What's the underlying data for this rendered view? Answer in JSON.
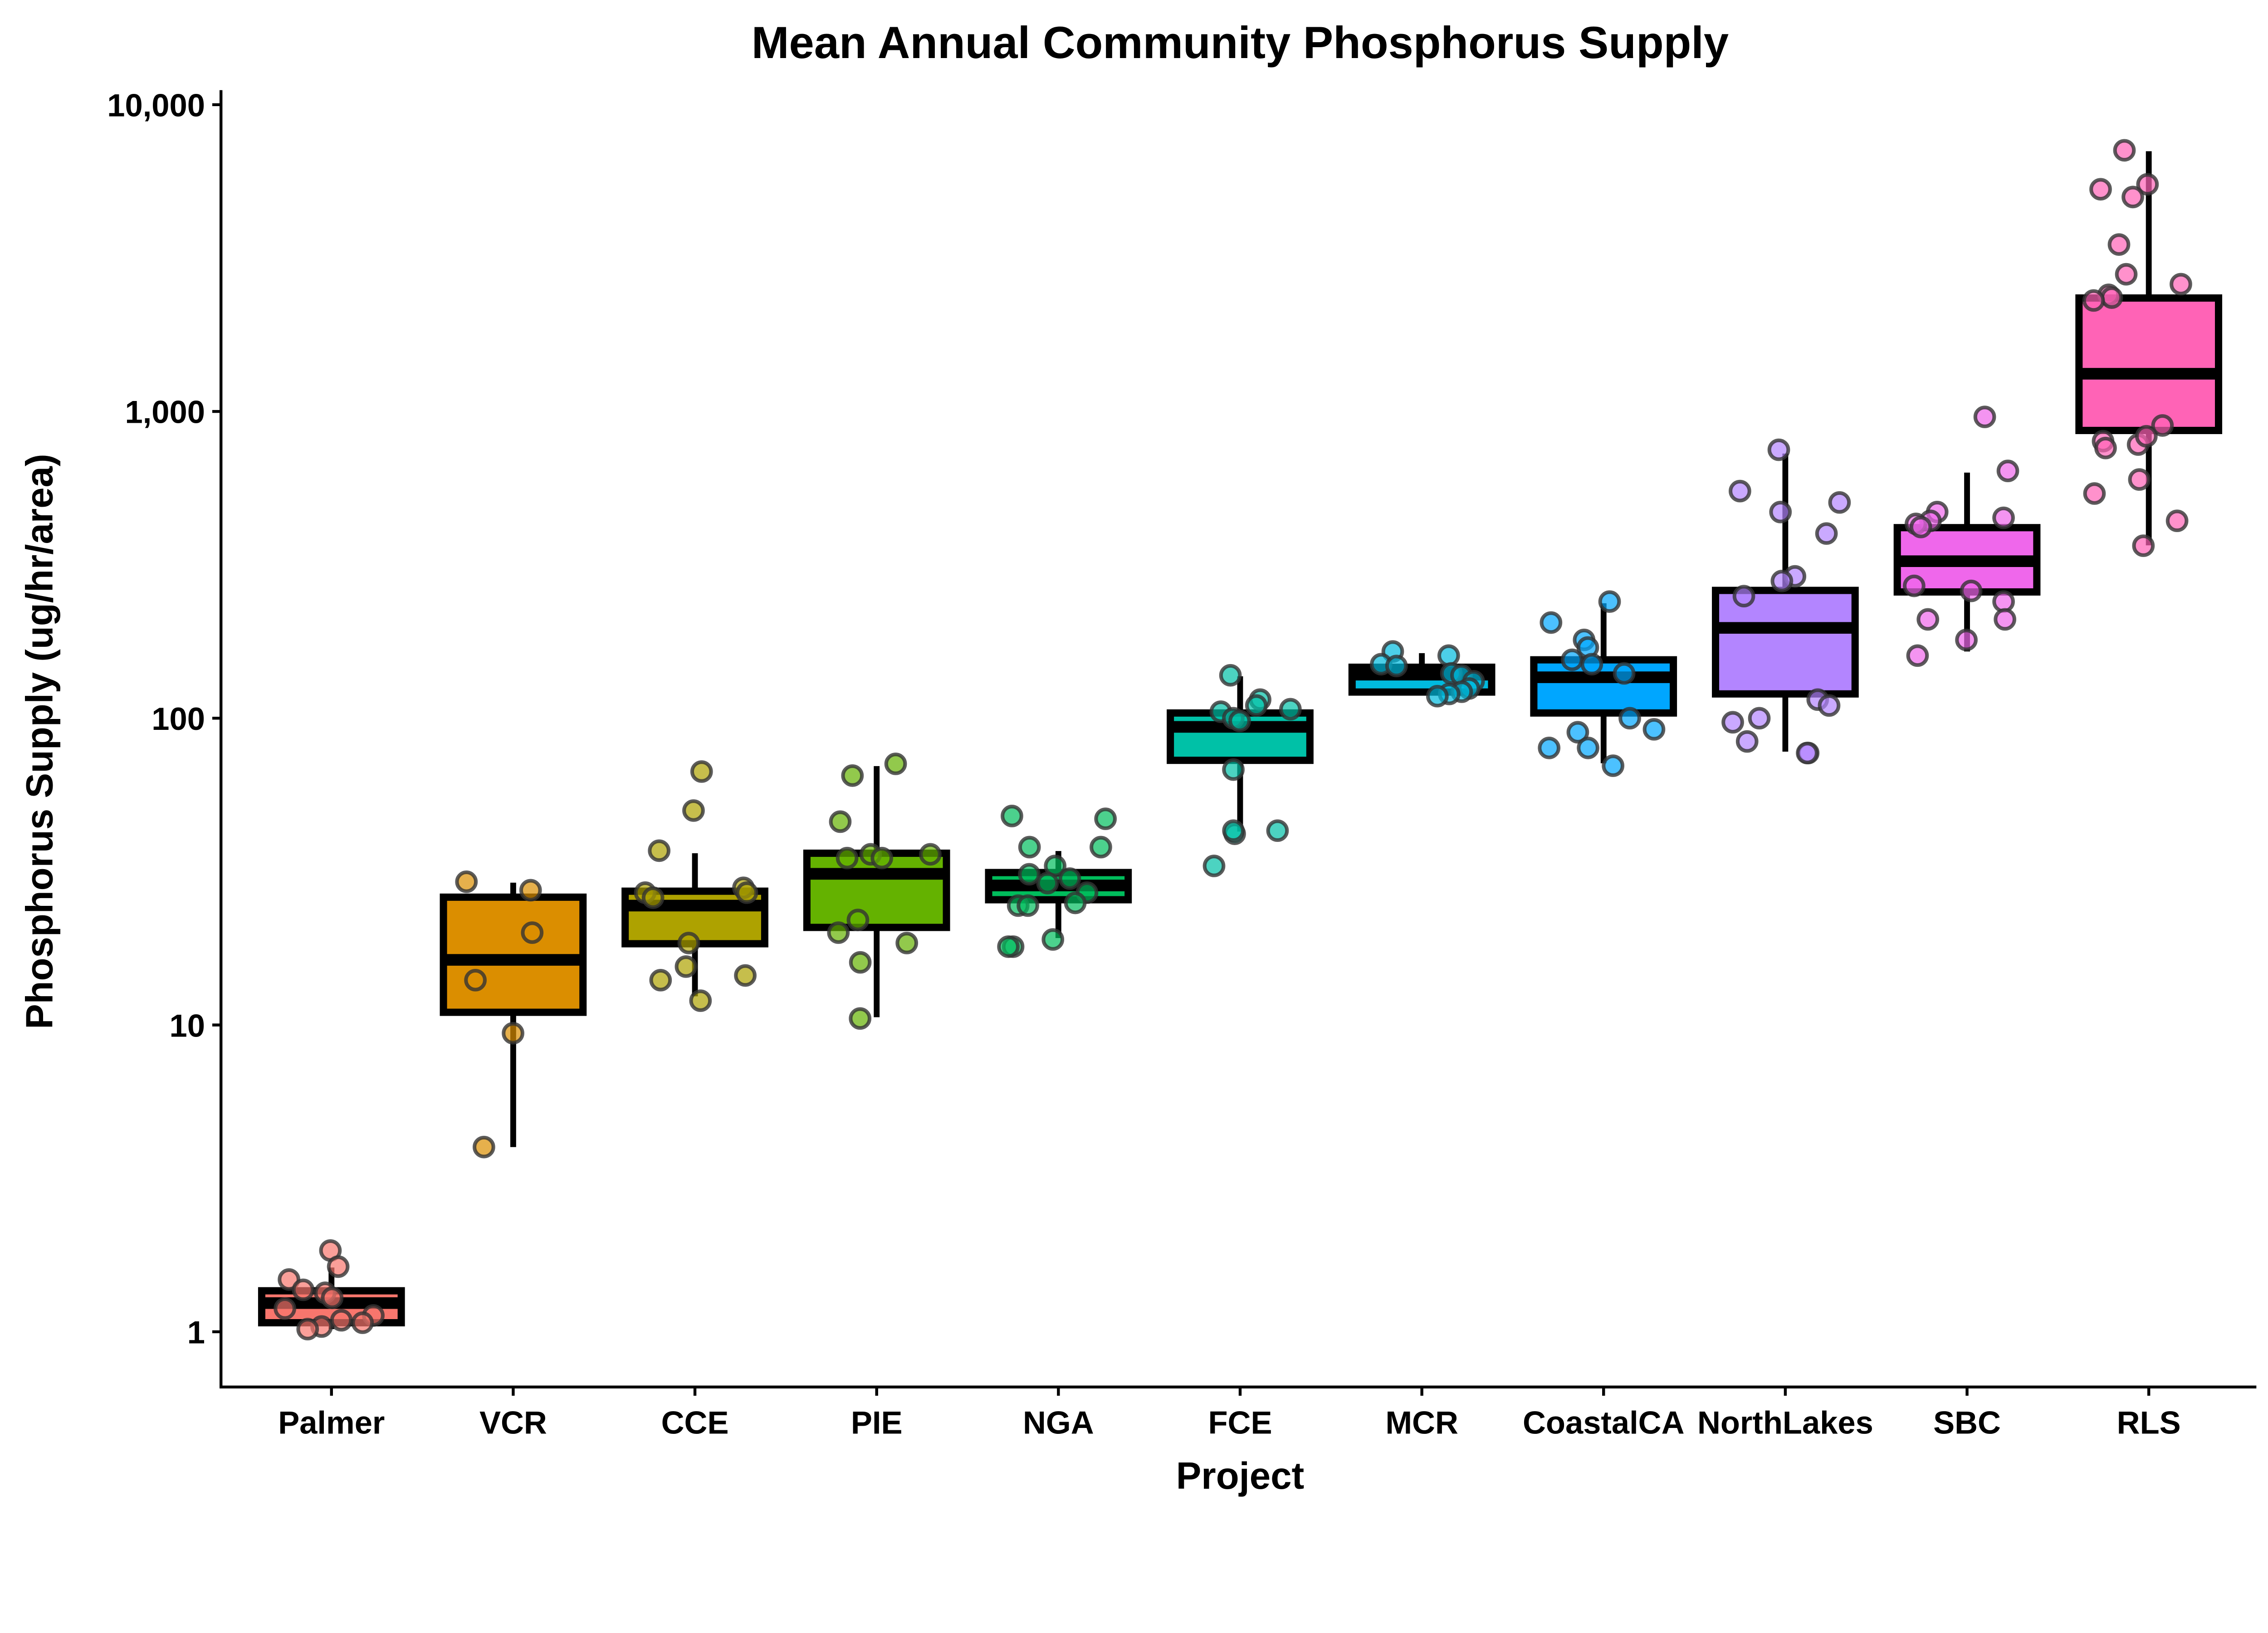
{
  "chart_data": {
    "type": "box",
    "title": "Mean Annual Community Phosphorus Supply",
    "xlabel": "Project",
    "ylabel": "Phosphorus Supply (ug/hr/area)",
    "yscale": "log10",
    "ylim": [
      0.65,
      12000
    ],
    "yticks": [
      1,
      10,
      100,
      1000,
      10000
    ],
    "ytick_labels": [
      "1",
      "10",
      "100",
      "1,000",
      "10,000"
    ],
    "grid": false,
    "legend": "none",
    "categories": [
      "Palmer",
      "VCR",
      "CCE",
      "PIE",
      "NGA",
      "FCE",
      "MCR",
      "CoastalCA",
      "NorthLakes",
      "SBC",
      "RLS"
    ],
    "colors": [
      "#F8766D",
      "#DB8E00",
      "#AEA200",
      "#64B200",
      "#00BD5C",
      "#00C1A7",
      "#00BADE",
      "#00A6FF",
      "#B385FF",
      "#EF67EB",
      "#FF63B6"
    ],
    "boxes": [
      {
        "lower": 1.02,
        "q1": 1.07,
        "median": 1.24,
        "q3": 1.36,
        "upper": 1.62
      },
      {
        "lower": 4.0,
        "q1": 11.0,
        "median": 16.3,
        "q3": 26.1,
        "upper": 29.1
      },
      {
        "lower": 12.4,
        "q1": 18.4,
        "median": 24.5,
        "q3": 27.3,
        "upper": 36.3
      },
      {
        "lower": 10.6,
        "q1": 20.8,
        "median": 31.1,
        "q3": 36.3,
        "upper": 69.8
      },
      {
        "lower": 19.2,
        "q1": 25.6,
        "median": 28.5,
        "q3": 31.4,
        "upper": 36.9
      },
      {
        "lower": 42.7,
        "q1": 72.9,
        "median": 93.7,
        "q3": 104,
        "upper": 137
      },
      {
        "lower": 121.7,
        "q1": 121.7,
        "median": 138.7,
        "q3": 146.6,
        "upper": 163
      },
      {
        "lower": 71.3,
        "q1": 104,
        "median": 136,
        "q3": 155,
        "upper": 237
      },
      {
        "lower": 77.8,
        "q1": 120,
        "median": 197,
        "q3": 261,
        "upper": 729
      },
      {
        "lower": 165,
        "q1": 258,
        "median": 325,
        "q3": 418,
        "upper": 632
      },
      {
        "lower": 366,
        "q1": 867,
        "median": 1327,
        "q3": 2343,
        "upper": 7050
      }
    ],
    "points": [
      [
        1.84,
        1.63,
        1.48,
        1.37,
        1.34,
        1.29,
        1.19,
        1.13,
        1.09,
        1.04,
        1.02,
        1.07
      ],
      [
        27.5,
        29.3,
        9.4,
        4.0,
        20,
        14
      ],
      [
        67,
        50,
        37,
        27,
        28,
        27,
        26,
        18.5,
        14.5,
        14,
        15.5,
        12
      ],
      [
        71,
        65,
        46,
        36,
        36,
        35,
        35,
        22,
        20,
        18.5,
        16,
        10.5
      ],
      [
        48,
        47,
        38,
        38,
        33,
        31,
        30,
        29,
        27,
        25,
        24.5,
        24.5,
        19,
        18,
        18
      ],
      [
        138,
        115,
        110,
        107,
        105,
        100,
        98,
        68,
        43,
        42,
        43,
        33
      ],
      [
        165,
        160,
        150,
        148,
        140,
        138,
        132,
        125,
        122,
        120,
        118
      ],
      [
        240,
        205,
        180,
        170,
        155,
        150,
        140,
        100,
        90,
        92,
        80,
        80,
        70
      ],
      [
        750,
        550,
        505,
        470,
        400,
        290,
        280,
        250,
        115,
        110,
        100,
        97,
        84,
        77,
        77
      ],
      [
        960,
        640,
        470,
        450,
        440,
        430,
        420,
        270,
        260,
        240,
        210,
        210,
        180,
        160
      ],
      [
        7100,
        5500,
        5300,
        5000,
        3500,
        2800,
        2600,
        2400,
        2350,
        2300,
        900,
        800,
        780,
        760,
        830,
        600,
        540,
        440,
        365
      ]
    ]
  }
}
